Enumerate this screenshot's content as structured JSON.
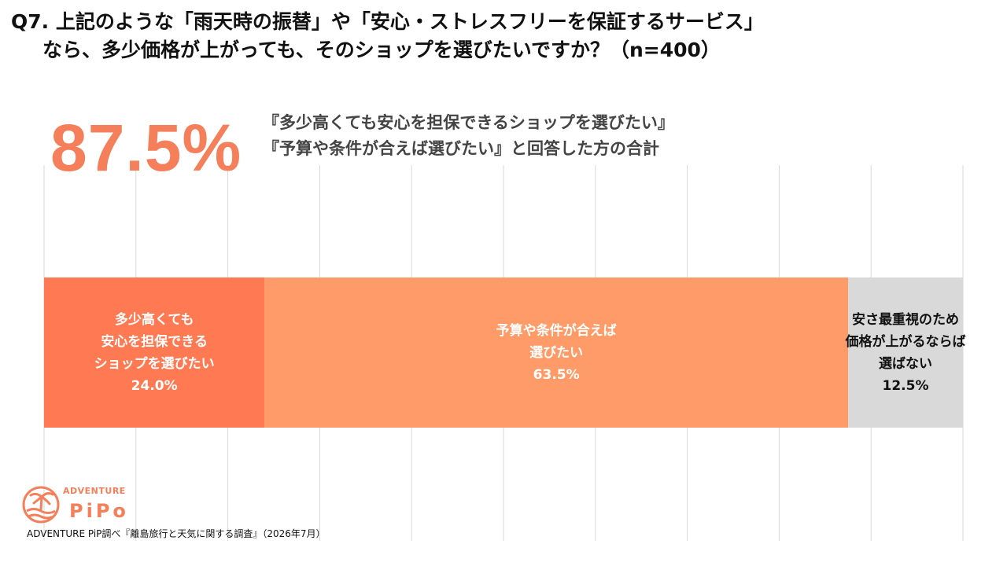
{
  "title": {
    "line1": "Q7. 上記のような「雨天時の振替」や「安心・ストレスフリーを保証するサービス」",
    "line2": "なら、多少価格が上がっても、そのショップを選びたいですか？（n=400）"
  },
  "highlight": {
    "value": "87.5%",
    "note_line1": "『多少高くても安心を担保できるショップを選びたい』",
    "note_line2": "『予算や条件が合えば選びたい』と回答した方の合計"
  },
  "colors": {
    "accent": "#f47f5a",
    "segment1": "#ff7a53",
    "segment2": "#ff9b68",
    "segment3": "#d9d9d9",
    "gridline": "#d9d9d9"
  },
  "chart_data": {
    "type": "bar",
    "orientation": "horizontal",
    "stacked": true,
    "percent": true,
    "xlim": [
      0,
      100
    ],
    "grid": true,
    "grid_step": 10,
    "series": [
      {
        "label_lines": [
          "多少高くても",
          "安心を担保できる",
          "ショップを選びたい"
        ],
        "value": 24.0,
        "value_label": "24.0%",
        "color": "#ff7a53",
        "text_color": "#ffffff"
      },
      {
        "label_lines": [
          "予算や条件が合えば",
          "選びたい"
        ],
        "value": 63.5,
        "value_label": "63.5%",
        "color": "#ff9b68",
        "text_color": "#ffffff"
      },
      {
        "label_lines": [
          "安さ最重視のため",
          "価格が上がるならば",
          "選ばない"
        ],
        "value": 12.5,
        "value_label": "12.5%",
        "color": "#d9d9d9",
        "text_color": "#111111"
      }
    ]
  },
  "logo": {
    "top_text": "ADVENTURE",
    "main_text": "PiPo"
  },
  "source": "ADVENTURE PiP調べ『離島旅行と天気に関する調査』（2026年7月）"
}
